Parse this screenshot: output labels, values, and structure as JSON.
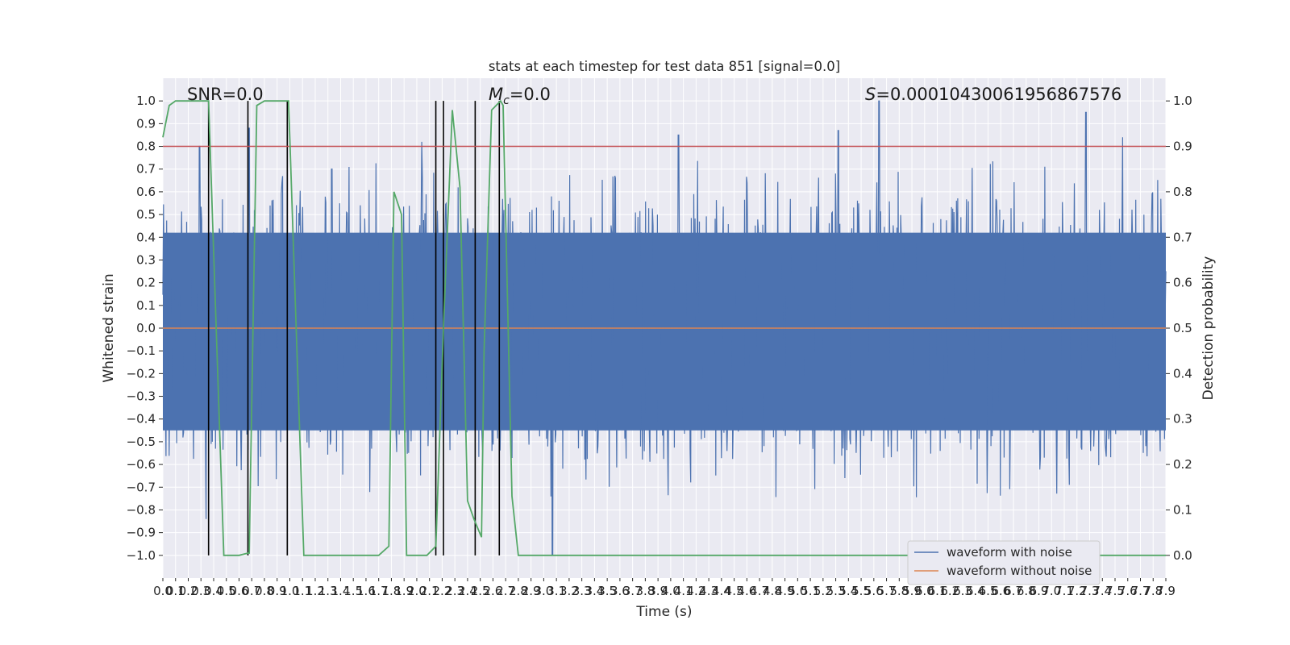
{
  "chart_data": {
    "type": "line",
    "title": "stats at each timestep for test data 851 [signal=0.0]",
    "xlabel": "Time (s)",
    "ylabel": "Whitened strain",
    "ylabel_right": "Detection probability",
    "xlim": [
      0.0,
      7.9
    ],
    "ylim": [
      -1.1,
      1.1
    ],
    "ylim_right": [
      -0.05,
      1.05
    ],
    "x_ticks": [
      "0.0",
      "0.1",
      "0.2",
      "0.3",
      "0.4",
      "0.5",
      "0.6",
      "0.7",
      "0.8",
      "0.9",
      "1.0",
      "1.1",
      "1.2",
      "1.3",
      "1.4",
      "1.5",
      "1.6",
      "1.7",
      "1.8",
      "1.9",
      "2.0",
      "2.1",
      "2.2",
      "2.3",
      "2.4",
      "2.5",
      "2.6",
      "2.7",
      "2.8",
      "2.9",
      "3.0",
      "3.1",
      "3.2",
      "3.3",
      "3.4",
      "3.5",
      "3.6",
      "3.7",
      "3.8",
      "3.9",
      "4.0",
      "4.1",
      "4.2",
      "4.3",
      "4.4",
      "4.5",
      "4.6",
      "4.7",
      "4.8",
      "4.9",
      "5.0",
      "5.1",
      "5.2",
      "5.3",
      "5.4",
      "5.5",
      "5.6",
      "5.7",
      "5.8",
      "5.9",
      "6.0",
      "6.1",
      "6.2",
      "6.3",
      "6.4",
      "6.5",
      "6.6",
      "6.7",
      "6.8",
      "6.9",
      "7.0",
      "7.1",
      "7.2",
      "7.3",
      "7.4",
      "7.5",
      "7.6",
      "7.7",
      "7.8",
      "7.9"
    ],
    "y_ticks_left": [
      "1.0",
      "0.9",
      "0.8",
      "0.7",
      "0.6",
      "0.5",
      "0.4",
      "0.3",
      "0.2",
      "0.1",
      "0.0",
      "−0.1",
      "−0.2",
      "−0.3",
      "−0.4",
      "−0.5",
      "−0.6",
      "−0.7",
      "−0.8",
      "−0.9",
      "−1.0"
    ],
    "y_ticks_right": [
      "1.0",
      "0.9",
      "0.8",
      "0.7",
      "0.6",
      "0.5",
      "0.4",
      "0.3",
      "0.2",
      "0.1",
      "0.0"
    ],
    "grid": true,
    "legend_position": "lower-right",
    "annotations": {
      "snr": "SNR=0.0",
      "mc_symbol": "M",
      "mc_sub": "c",
      "mc_value": "=0.0",
      "s_symbol": "S",
      "s_value": "=0.00010430061956867576"
    },
    "threshold": 0.8,
    "series": [
      {
        "name": "waveform with noise",
        "color": "#4c72b0",
        "description_values": {
          "dense_band": [
            -0.45,
            0.42
          ],
          "peaks": [
            {
              "x": 0.29,
              "y": 0.8
            },
            {
              "x": 0.34,
              "y": -0.84
            },
            {
              "x": 0.68,
              "y": 0.88
            },
            {
              "x": 1.33,
              "y": 0.7
            },
            {
              "x": 2.04,
              "y": 0.82
            },
            {
              "x": 3.07,
              "y": -1.0
            },
            {
              "x": 4.06,
              "y": 0.85
            },
            {
              "x": 5.32,
              "y": 0.87
            },
            {
              "x": 5.64,
              "y": 1.0
            },
            {
              "x": 7.27,
              "y": 0.95
            },
            {
              "x": 7.56,
              "y": 0.84
            }
          ]
        }
      },
      {
        "name": "waveform without noise",
        "color": "#dd8452",
        "values_constant": 0.0
      },
      {
        "name": "detection probability",
        "color": "#55a868",
        "axis": "right",
        "x": [
          0.0,
          0.05,
          0.1,
          0.2,
          0.3,
          0.36,
          0.48,
          0.6,
          0.67,
          0.68,
          0.74,
          0.8,
          0.9,
          0.99,
          1.11,
          1.2,
          1.6,
          1.7,
          1.78,
          1.82,
          1.88,
          1.92,
          2.04,
          2.08,
          2.15,
          2.21,
          2.28,
          2.34,
          2.4,
          2.45,
          2.51,
          2.53,
          2.59,
          2.66,
          2.68,
          2.75,
          2.8,
          7.9
        ],
        "y": [
          0.92,
          0.99,
          1.0,
          1.0,
          1.0,
          1.0,
          0.0,
          0.0,
          0.005,
          0.005,
          0.99,
          1.0,
          1.0,
          1.0,
          0.0,
          0.0,
          0.0,
          0.0,
          0.02,
          0.8,
          0.75,
          0.0,
          0.0,
          0.0,
          0.02,
          0.5,
          0.98,
          0.81,
          0.12,
          0.08,
          0.04,
          0.45,
          0.98,
          1.0,
          0.99,
          0.13,
          0.0,
          0.0
        ]
      }
    ],
    "vertical_lines": [
      0.36,
      0.67,
      0.98,
      2.15,
      2.21,
      2.46,
      2.65
    ]
  },
  "legend": {
    "noise_label": "waveform with noise",
    "clean_label": "waveform without noise"
  }
}
